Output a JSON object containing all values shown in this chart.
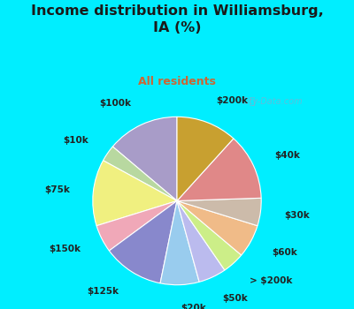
{
  "title": "Income distribution in Williamsburg,\nIA (%)",
  "subtitle": "All residents",
  "title_color": "#1a1a1a",
  "subtitle_color": "#cc6633",
  "bg_cyan": "#00eeff",
  "bg_chart": "#e0f0e8",
  "watermark": "City-Data.com",
  "labels": [
    "$100k",
    "$10k",
    "$75k",
    "$150k",
    "$125k",
    "$20k",
    "$50k",
    "> $200k",
    "$60k",
    "$30k",
    "$40k",
    "$200k"
  ],
  "values": [
    13,
    3,
    12,
    5,
    11,
    7,
    5,
    4,
    6,
    5,
    12,
    11
  ],
  "colors": [
    "#a89cc8",
    "#b8d8a0",
    "#f0f080",
    "#f0a8b8",
    "#8888cc",
    "#99ccee",
    "#bbbbee",
    "#ccee88",
    "#f0bb88",
    "#ccbbaa",
    "#e08888",
    "#c8a030"
  ],
  "startangle": 90,
  "label_fontsize": 7.5,
  "label_color": "#222222",
  "title_fontsize": 11.5,
  "subtitle_fontsize": 9
}
